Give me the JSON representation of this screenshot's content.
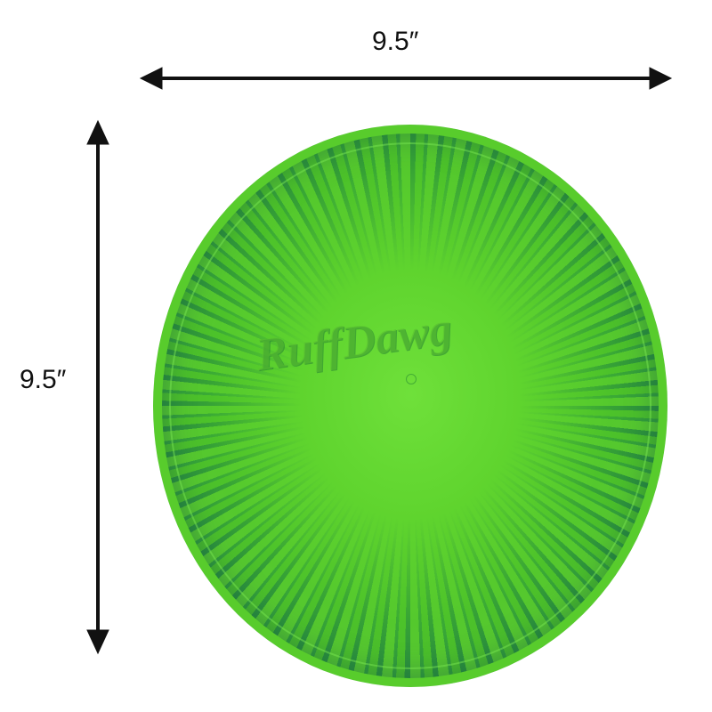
{
  "dimensions": {
    "width_label": "9.5″",
    "height_label": "9.5″"
  },
  "product": {
    "logo_text": "RuffDawg",
    "colors": {
      "primary": "#5fd42e",
      "streak": "#1f7a4a"
    }
  }
}
